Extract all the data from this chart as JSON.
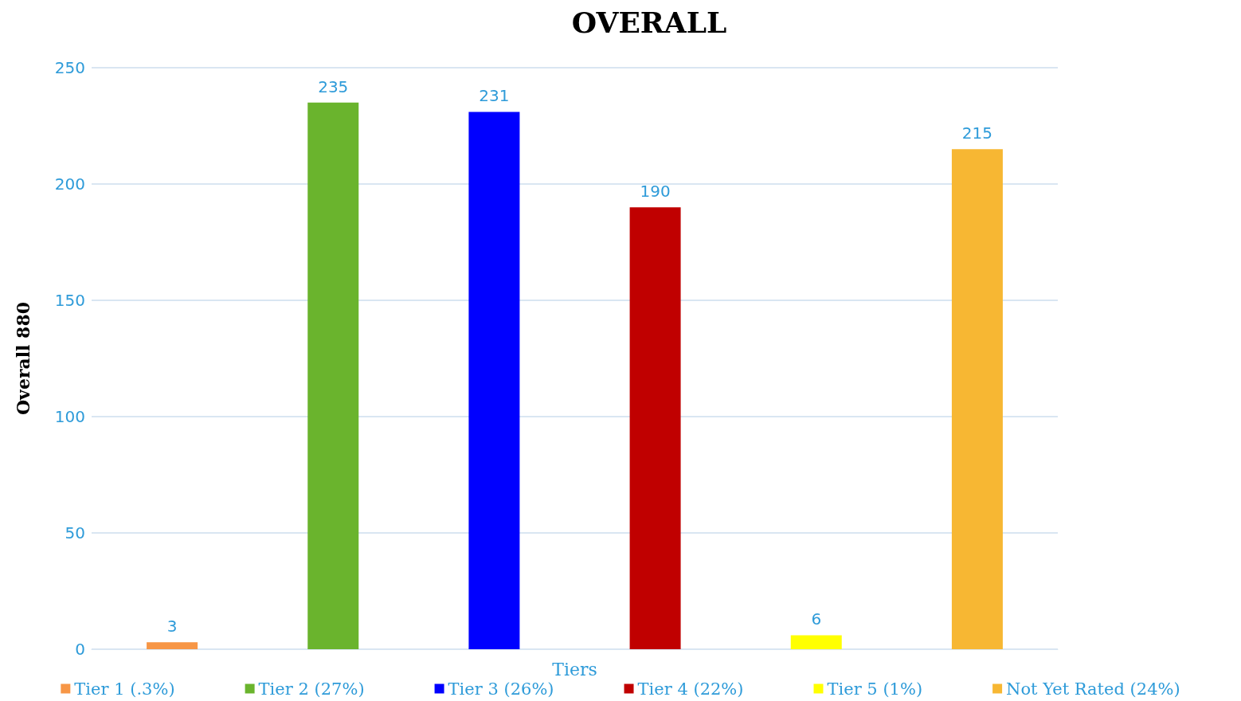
{
  "chart_data": {
    "type": "bar",
    "title": "OVERALL",
    "xlabel": "Tiers",
    "ylabel": "Overall 880",
    "categories": [
      null,
      null,
      null,
      null,
      null,
      null
    ],
    "series": [
      {
        "name": "Tier 1 (.3%)",
        "color": "#f79646",
        "values": [
          3,
          null,
          null,
          null,
          null,
          null
        ]
      },
      {
        "name": "Tier 2 (27%)",
        "color": "#6ab42d",
        "values": [
          null,
          235,
          null,
          null,
          null,
          null
        ]
      },
      {
        "name": "Tier 3 (26%)",
        "color": "#0000ff",
        "values": [
          null,
          null,
          231,
          null,
          null,
          null
        ]
      },
      {
        "name": "Tier 4 (22%)",
        "color": "#c00000",
        "values": [
          null,
          null,
          null,
          190,
          null,
          null
        ]
      },
      {
        "name": "Tier 5 (1%)",
        "color": "#ffff00",
        "values": [
          null,
          null,
          null,
          null,
          6,
          null
        ]
      },
      {
        "name": "Not Yet Rated (24%)",
        "color": "#f7b733",
        "values": [
          null,
          null,
          null,
          null,
          null,
          215
        ]
      }
    ],
    "ylim": [
      0,
      250
    ],
    "yticks": [
      0,
      50,
      100,
      150,
      200,
      250
    ],
    "grid": "y",
    "legend": "bottom",
    "data_labels": true
  }
}
